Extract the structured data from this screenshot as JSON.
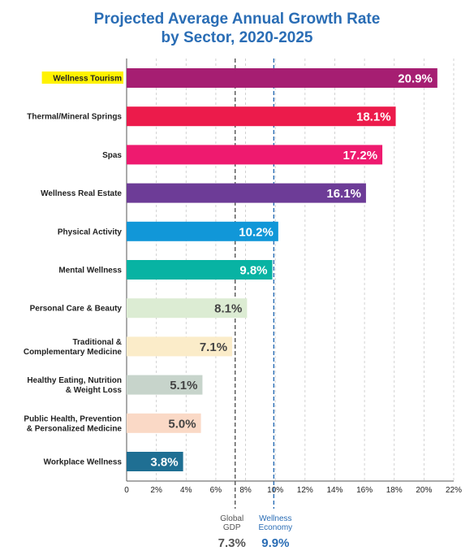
{
  "title_line1": "Projected Average Annual Growth Rate",
  "title_line2": "by Sector, 2020-2025",
  "chart_data": {
    "type": "bar",
    "orientation": "horizontal",
    "title": "Projected Average Annual Growth Rate by Sector, 2020-2025",
    "categories": [
      [
        "Wellness Tourism"
      ],
      [
        "Thermal/Mineral Springs"
      ],
      [
        "Spas"
      ],
      [
        "Wellness Real Estate"
      ],
      [
        "Physical Activity"
      ],
      [
        "Mental Wellness"
      ],
      [
        "Personal Care & Beauty"
      ],
      [
        "Traditional &",
        "Complementary Medicine"
      ],
      [
        "Healthy Eating, Nutrition",
        "& Weight Loss"
      ],
      [
        "Public Health, Prevention",
        "& Personalized Medicine"
      ],
      [
        "Workplace Wellness"
      ]
    ],
    "values": [
      20.9,
      18.1,
      17.2,
      16.1,
      10.2,
      9.8,
      8.1,
      7.1,
      5.1,
      5.0,
      3.8
    ],
    "value_labels": [
      "20.9%",
      "18.1%",
      "17.2%",
      "16.1%",
      "10.2%",
      "9.8%",
      "8.1%",
      "7.1%",
      "5.1%",
      "5.0%",
      "3.8%"
    ],
    "bar_colors": [
      "#a61e72",
      "#ec1b4b",
      "#ee1a6f",
      "#6d3c97",
      "#1197d8",
      "#08b3a3",
      "#dcecd3",
      "#fbecc9",
      "#c7d4cb",
      "#fad9c6",
      "#1f6f93"
    ],
    "label_colors": [
      "#ffffff",
      "#ffffff",
      "#ffffff",
      "#ffffff",
      "#ffffff",
      "#ffffff",
      "#444444",
      "#444444",
      "#444444",
      "#444444",
      "#ffffff"
    ],
    "highlighted_category": "Wellness Tourism",
    "highlight_color": "#fff200",
    "xlim": [
      0,
      22
    ],
    "xticks": [
      0,
      2,
      4,
      6,
      8,
      10,
      12,
      14,
      16,
      18,
      20,
      22
    ],
    "xtick_labels": [
      "0",
      "2%",
      "4%",
      "6%",
      "8%",
      "10%",
      "12%",
      "14%",
      "16%",
      "18%",
      "20%",
      "22%"
    ],
    "grid": "vertical dashed",
    "reference_lines": [
      {
        "label": [
          "Global",
          "GDP"
        ],
        "value": 7.3,
        "value_label": "7.3%",
        "color": "#555555"
      },
      {
        "label": [
          "Wellness",
          "Economy"
        ],
        "value": 9.9,
        "value_label": "9.9%",
        "color": "#2a6db5"
      }
    ]
  }
}
